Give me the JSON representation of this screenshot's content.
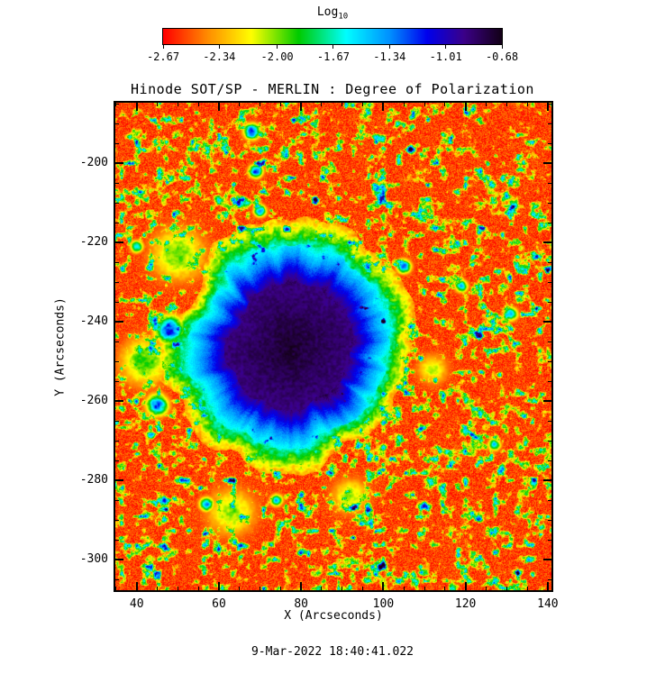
{
  "page": {
    "background": "#ffffff",
    "text_color": "#000000"
  },
  "colorbar": {
    "label_main": "Log",
    "label_sub": "10"
  },
  "title": "Hinode SOT/SP - MERLIN : Degree of Polarization",
  "axes": {
    "xlabel": "X (Arcseconds)",
    "ylabel": "Y (Arcseconds)"
  },
  "caption": "9-Mar-2022 18:40:41.022",
  "chart_data": {
    "type": "heatmap",
    "title": "Hinode SOT/SP - MERLIN : Degree of Polarization",
    "xlabel": "X (Arcseconds)",
    "ylabel": "Y (Arcseconds)",
    "x_range": [
      34.8,
      140.9
    ],
    "y_range": [
      -307.7,
      -184.7
    ],
    "x_major_ticks": [
      40,
      60,
      80,
      100,
      120,
      140
    ],
    "y_major_ticks": [
      -200,
      -220,
      -240,
      -260,
      -280,
      -300
    ],
    "minor_tick_step": 5,
    "colorbar": {
      "scale_label": "Log10",
      "min": -2.67,
      "max": -0.68,
      "tick_values": [
        -2.67,
        -2.34,
        -2.0,
        -1.67,
        -1.34,
        -1.01,
        -0.68
      ],
      "tick_labels": [
        "-2.67",
        "-2.34",
        "-2.00",
        "-1.67",
        "-1.34",
        "-1.01",
        "-0.68"
      ]
    },
    "colormap_stops": [
      [
        0.0,
        "#ff0000"
      ],
      [
        0.13,
        "#ff8c00"
      ],
      [
        0.26,
        "#ffff00"
      ],
      [
        0.4,
        "#00cc00"
      ],
      [
        0.54,
        "#00ffff"
      ],
      [
        0.67,
        "#0090ff"
      ],
      [
        0.78,
        "#0000ee"
      ],
      [
        0.89,
        "#3c0088"
      ],
      [
        1.0,
        "#140018"
      ]
    ],
    "quantity": "Degree of Polarization (Log10)",
    "observation_time": "9-Mar-2022 18:40:41.022",
    "features": {
      "background": {
        "base_value": 0.06,
        "speckle_amplitude": 0.14,
        "network_scale": 0.55,
        "network_threshold": 0.56,
        "network_gain": 2.2,
        "knot_scale": 0.3,
        "knot_threshold": 0.68,
        "knot_gain": 3.0
      },
      "sunspot": {
        "center_x": 77.5,
        "center_y": -246.5,
        "umbra_radius": 15.5,
        "penumbra_radius": 25,
        "halo_radius": 31,
        "umbra_log_dop": -0.75,
        "penumbra_log_dop": -1.2,
        "quiet_sun_log_dop": -2.6
      },
      "patches": [
        {
          "x": 48,
          "y": -242,
          "r": 4.5,
          "v": 0.8
        },
        {
          "x": 45,
          "y": -261,
          "r": 3.5,
          "v": 0.74
        },
        {
          "x": 68,
          "y": -192,
          "r": 2.6,
          "v": 0.8
        },
        {
          "x": 69,
          "y": -202,
          "r": 2.2,
          "v": 0.76
        },
        {
          "x": 70,
          "y": -212,
          "r": 2.0,
          "v": 0.7
        },
        {
          "x": 105,
          "y": -226,
          "r": 2.3,
          "v": 0.72
        },
        {
          "x": 119,
          "y": -231,
          "r": 2.0,
          "v": 0.66
        },
        {
          "x": 131,
          "y": -238,
          "r": 2.2,
          "v": 0.68
        },
        {
          "x": 57,
          "y": -286,
          "r": 2.3,
          "v": 0.66
        },
        {
          "x": 74,
          "y": -285,
          "r": 2.0,
          "v": 0.62
        },
        {
          "x": 127,
          "y": -271,
          "r": 2.0,
          "v": 0.6
        },
        {
          "x": 40,
          "y": -221,
          "r": 2.0,
          "v": 0.6
        },
        {
          "x": 50,
          "y": -223,
          "r": 9.0,
          "v": 0.36
        },
        {
          "x": 42,
          "y": -250,
          "r": 8.0,
          "v": 0.4
        },
        {
          "x": 63,
          "y": -288,
          "r": 8.0,
          "v": 0.34
        },
        {
          "x": 92,
          "y": -284,
          "r": 6.0,
          "v": 0.32
        },
        {
          "x": 112,
          "y": -252,
          "r": 5.0,
          "v": 0.3
        }
      ]
    }
  }
}
